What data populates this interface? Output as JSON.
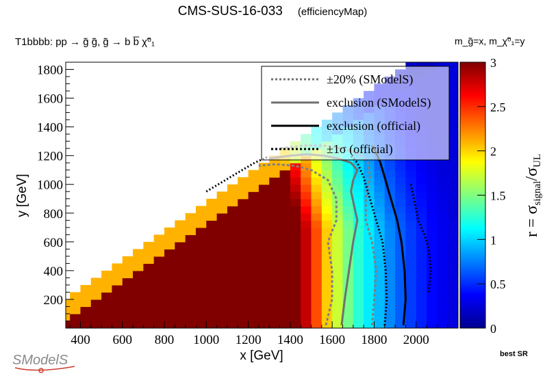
{
  "header": {
    "title": "CMS-SUS-16-033",
    "subtitle": "(efficiencyMap)",
    "process": "T1bbbb: pp → g̃ g̃, g̃ → b b̅ χ̃⁰₁",
    "masses": "m_g̃=x, m_χ̃⁰₁=y",
    "best_sr": "best SR",
    "logo": "SModelS"
  },
  "legend": {
    "items": [
      {
        "label": "±20% (SModelS)",
        "style": "dotted",
        "color": "#707070"
      },
      {
        "label": "exclusion (SModelS)",
        "style": "solid",
        "color": "#707070"
      },
      {
        "label": "exclusion (official)",
        "style": "solid",
        "color": "#000000"
      },
      {
        "label": "±1σ (official)",
        "style": "dotted",
        "color": "#000000"
      }
    ]
  },
  "colorbar": {
    "label": "r = σsignal/σUL",
    "ticks": [
      "0",
      "0.5",
      "1",
      "1.5",
      "2",
      "2.5",
      "3"
    ],
    "min": 0,
    "max": 3
  },
  "chart_data": {
    "type": "heatmap",
    "title": "CMS-SUS-16-033 (efficiencyMap)",
    "xlabel": "x [GeV]",
    "ylabel": "y [GeV]",
    "zlabel": "r = σsignal/σUL",
    "xlim": [
      330,
      2200
    ],
    "ylim": [
      0,
      1850
    ],
    "zlim": [
      0,
      3
    ],
    "xticks": [
      400,
      600,
      800,
      1000,
      1200,
      1400,
      1600,
      1800,
      2000
    ],
    "yticks": [
      200,
      400,
      600,
      800,
      1000,
      1200,
      1400,
      1600,
      1800
    ],
    "grid": false,
    "legend_position": "top-right",
    "bin_width_x": 50,
    "bin_height_y": 50,
    "r_profile": {
      "description": "r versus gluino mass x for low neutralino mass; values decrease toward high x and near the diagonal",
      "x": [
        1200,
        1450,
        1500,
        1550,
        1600,
        1650,
        1700,
        1750,
        1800,
        1850,
        1900,
        2000,
        2100,
        2200
      ],
      "r": [
        3.0,
        3.0,
        2.6,
        2.2,
        1.85,
        1.6,
        1.35,
        1.15,
        1.0,
        0.85,
        0.7,
        0.5,
        0.35,
        0.25
      ]
    },
    "series": [
      {
        "name": "exclusion (SModelS)",
        "x": [
          1645,
          1660,
          1680,
          1700,
          1720,
          1705,
          1690,
          1700,
          1720,
          1690,
          1630,
          1560,
          1480,
          1400,
          1300
        ],
        "y": [
          20,
          200,
          400,
          600,
          750,
          850,
          950,
          1030,
          1100,
          1150,
          1180,
          1200,
          1210,
          1200,
          1180
        ]
      },
      {
        "name": "+20% (SModelS)",
        "x": [
          1790,
          1800,
          1810,
          1790,
          1760,
          1760,
          1780,
          1770,
          1730,
          1650,
          1560,
          1460,
          1350
        ],
        "y": [
          20,
          200,
          400,
          600,
          750,
          900,
          1050,
          1150,
          1210,
          1250,
          1270,
          1270,
          1250
        ]
      },
      {
        "name": "-20% (SModelS)",
        "x": [
          1570,
          1600,
          1600,
          1580,
          1620,
          1620,
          1580,
          1500,
          1420,
          1330,
          1250
        ],
        "y": [
          20,
          200,
          400,
          600,
          750,
          900,
          1030,
          1100,
          1130,
          1140,
          1130
        ]
      },
      {
        "name": "exclusion (official)",
        "x": [
          1940,
          1950,
          1945,
          1930,
          1910,
          1880,
          1850,
          1830,
          1810,
          1790
        ],
        "y": [
          20,
          200,
          400,
          600,
          750,
          900,
          1050,
          1150,
          1220,
          1270
        ]
      },
      {
        "name": "+1σ (official)",
        "x": [
          2060,
          2070,
          2060,
          2040,
          2010,
          1990,
          1975
        ],
        "y": [
          250,
          400,
          550,
          650,
          750,
          900,
          1000
        ]
      },
      {
        "name": "-1σ (official)",
        "x": [
          1850,
          1860,
          1855,
          1840,
          1810,
          1780,
          1750,
          1720,
          1690
        ],
        "y": [
          20,
          200,
          400,
          600,
          750,
          900,
          1050,
          1150,
          1200
        ]
      },
      {
        "name": "-1σ diagonal (official)",
        "x": [
          1000,
          1080,
          1160,
          1230,
          1290
        ],
        "y": [
          950,
          1020,
          1090,
          1150,
          1190
        ]
      }
    ]
  }
}
